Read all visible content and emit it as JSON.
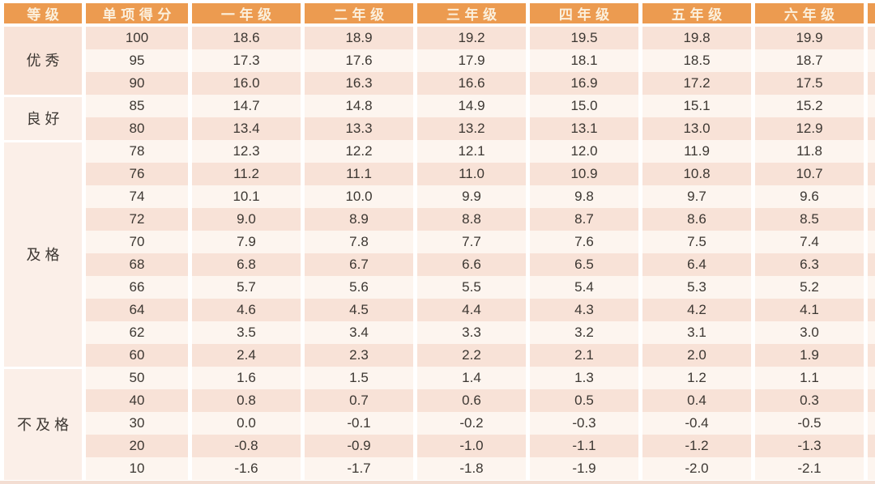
{
  "colors": {
    "header_bg": "#EC9B50",
    "header_text": "#FBF0DD",
    "row_pink": "#F8E2D7",
    "row_cream": "#FDF5EF",
    "group_dark": "#F8E3D8",
    "group_light": "#FBEFE8",
    "body_text": "#3C3732",
    "gap_white": "#FFFFFF",
    "bottom_strip": "#F3DDD2"
  },
  "chart_data": {
    "type": "table",
    "columns": [
      "等级",
      "单项得分",
      "一年级",
      "二年级",
      "三年级",
      "四年级",
      "五年级",
      "六年级"
    ],
    "groups": [
      {
        "label": "优秀",
        "rows": [
          {
            "score": "100",
            "values": [
              "18.6",
              "18.9",
              "19.2",
              "19.5",
              "19.8",
              "19.9"
            ]
          },
          {
            "score": "95",
            "values": [
              "17.3",
              "17.6",
              "17.9",
              "18.1",
              "18.5",
              "18.7"
            ]
          },
          {
            "score": "90",
            "values": [
              "16.0",
              "16.3",
              "16.6",
              "16.9",
              "17.2",
              "17.5"
            ]
          }
        ]
      },
      {
        "label": "良好",
        "rows": [
          {
            "score": "85",
            "values": [
              "14.7",
              "14.8",
              "14.9",
              "15.0",
              "15.1",
              "15.2"
            ]
          },
          {
            "score": "80",
            "values": [
              "13.4",
              "13.3",
              "13.2",
              "13.1",
              "13.0",
              "12.9"
            ]
          }
        ]
      },
      {
        "label": "及格",
        "rows": [
          {
            "score": "78",
            "values": [
              "12.3",
              "12.2",
              "12.1",
              "12.0",
              "11.9",
              "11.8"
            ]
          },
          {
            "score": "76",
            "values": [
              "11.2",
              "11.1",
              "11.0",
              "10.9",
              "10.8",
              "10.7"
            ]
          },
          {
            "score": "74",
            "values": [
              "10.1",
              "10.0",
              "9.9",
              "9.8",
              "9.7",
              "9.6"
            ]
          },
          {
            "score": "72",
            "values": [
              "9.0",
              "8.9",
              "8.8",
              "8.7",
              "8.6",
              "8.5"
            ]
          },
          {
            "score": "70",
            "values": [
              "7.9",
              "7.8",
              "7.7",
              "7.6",
              "7.5",
              "7.4"
            ]
          },
          {
            "score": "68",
            "values": [
              "6.8",
              "6.7",
              "6.6",
              "6.5",
              "6.4",
              "6.3"
            ]
          },
          {
            "score": "66",
            "values": [
              "5.7",
              "5.6",
              "5.5",
              "5.4",
              "5.3",
              "5.2"
            ]
          },
          {
            "score": "64",
            "values": [
              "4.6",
              "4.5",
              "4.4",
              "4.3",
              "4.2",
              "4.1"
            ]
          },
          {
            "score": "62",
            "values": [
              "3.5",
              "3.4",
              "3.3",
              "3.2",
              "3.1",
              "3.0"
            ]
          },
          {
            "score": "60",
            "values": [
              "2.4",
              "2.3",
              "2.2",
              "2.1",
              "2.0",
              "1.9"
            ]
          }
        ]
      },
      {
        "label": "不及格",
        "rows": [
          {
            "score": "50",
            "values": [
              "1.6",
              "1.5",
              "1.4",
              "1.3",
              "1.2",
              "1.1"
            ]
          },
          {
            "score": "40",
            "values": [
              "0.8",
              "0.7",
              "0.6",
              "0.5",
              "0.4",
              "0.3"
            ]
          },
          {
            "score": "30",
            "values": [
              "0.0",
              "-0.1",
              "-0.2",
              "-0.3",
              "-0.4",
              "-0.5"
            ]
          },
          {
            "score": "20",
            "values": [
              "-0.8",
              "-0.9",
              "-1.0",
              "-1.1",
              "-1.2",
              "-1.3"
            ]
          },
          {
            "score": "10",
            "values": [
              "-1.6",
              "-1.7",
              "-1.8",
              "-1.9",
              "-2.0",
              "-2.1"
            ]
          }
        ]
      }
    ]
  }
}
